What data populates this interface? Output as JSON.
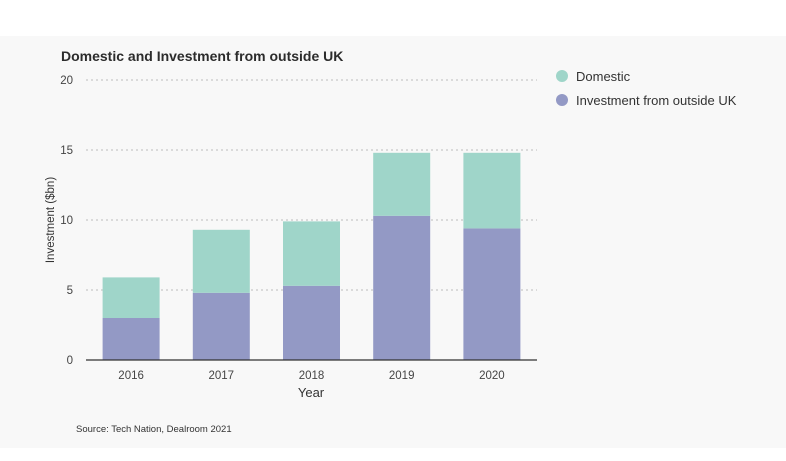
{
  "title": "Domestic and Investment from outside UK",
  "source": "Source: Tech Nation, Dealroom 2021",
  "legend": {
    "domestic": "Domestic",
    "outside": "Investment from outside UK"
  },
  "colors": {
    "domestic": "#9fd5c9",
    "outside": "#9399c5",
    "grid": "#bbbbbb",
    "axis": "#333333",
    "panel": "#f8f8f8"
  },
  "chart_data": {
    "type": "bar",
    "stacked": true,
    "title": "Domestic and Investment from outside UK",
    "xlabel": "Year",
    "ylabel": "Investment ($bn)",
    "categories": [
      "2016",
      "2017",
      "2018",
      "2019",
      "2020"
    ],
    "series": [
      {
        "name": "Investment from outside UK",
        "values": [
          3.0,
          4.8,
          5.3,
          10.3,
          9.4
        ]
      },
      {
        "name": "Domestic",
        "values": [
          2.9,
          4.5,
          4.6,
          4.5,
          5.4
        ]
      }
    ],
    "ylim": [
      0,
      20
    ],
    "yticks": [
      "0",
      "5",
      "10",
      "15",
      "20"
    ],
    "grid": true,
    "legend_position": "top-right"
  }
}
